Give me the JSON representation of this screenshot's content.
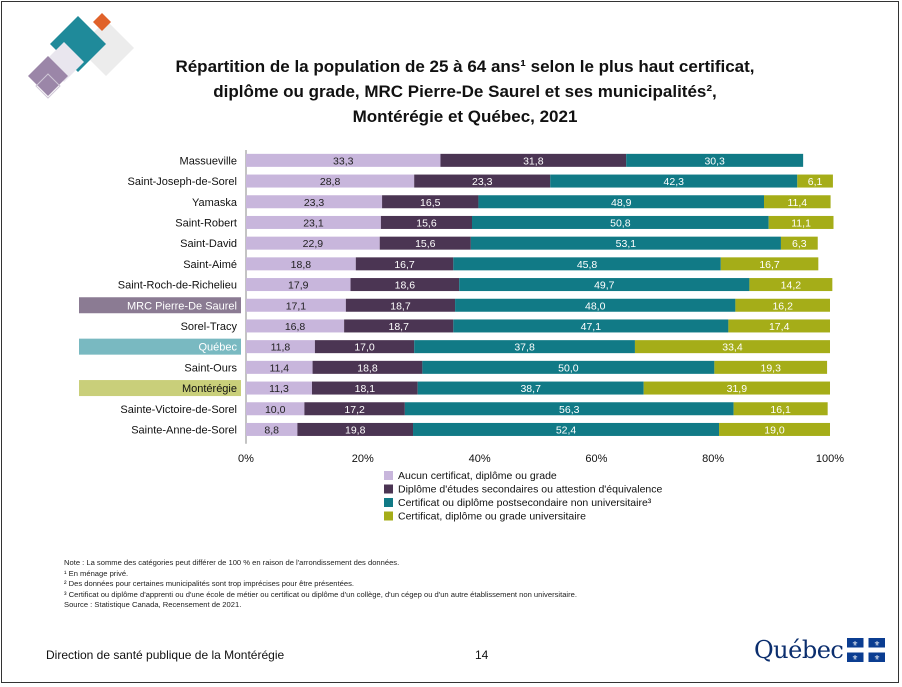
{
  "title": "Répartition de la population de 25 à 64 ans¹ selon le plus haut certificat,\ndiplôme ou grade, MRC Pierre-De Saurel et ses municipalités², \nMontérégie et Québec, 2021",
  "colors": {
    "highlight_mrc": "#8b7b93",
    "highlight_quebec": "#79b9c1",
    "highlight_monteregie": "#c9cf7a",
    "deco_teal": "#1f8a9a",
    "deco_orange": "#e0622a",
    "deco_purple": "#9b86a8",
    "deco_gray": "#e3e3e3"
  },
  "chart_data": {
    "type": "bar",
    "orientation": "horizontal",
    "stacked": true,
    "normalized": true,
    "categories": [
      "Massueville",
      "Saint-Joseph-de-Sorel",
      "Yamaska",
      "Saint-Robert",
      "Saint-David",
      "Saint-Aimé",
      "Saint-Roch-de-Richelieu",
      "MRC Pierre-De Saurel",
      "Sorel-Tracy",
      "Québec",
      "Saint-Ours",
      "Montérégie",
      "Sainte-Victoire-de-Sorel",
      "Sainte-Anne-de-Sorel"
    ],
    "highlighted": {
      "MRC Pierre-De Saurel": "highlight_mrc",
      "Québec": "highlight_quebec",
      "Montérégie": "highlight_monteregie"
    },
    "series": [
      {
        "name": "Aucun certificat, diplôme ou grade",
        "color": "#c8b6dc",
        "values": [
          33.3,
          28.8,
          23.3,
          23.1,
          22.9,
          18.8,
          17.9,
          17.1,
          16.8,
          11.8,
          11.4,
          11.3,
          10.0,
          8.8
        ],
        "labels": [
          "33,3",
          "28,8",
          "23,3",
          "23,1",
          "22,9",
          "18,8",
          "17,9",
          "17,1",
          "16,8",
          "11,8",
          "11,4",
          "11,3",
          "10,0",
          "8,8"
        ]
      },
      {
        "name": "Diplôme d'études secondaires ou attestion d'équivalence",
        "color": "#4b3553",
        "values": [
          31.8,
          23.3,
          16.5,
          15.6,
          15.6,
          16.7,
          18.6,
          18.7,
          18.7,
          17.0,
          18.8,
          18.1,
          17.2,
          19.8
        ],
        "labels": [
          "31,8",
          "23,3",
          "16,5",
          "15,6",
          "15,6",
          "16,7",
          "18,6",
          "18,7",
          "18,7",
          "17,0",
          "18,8",
          "18,1",
          "17,2",
          "19,8"
        ]
      },
      {
        "name": "Certificat ou diplôme postsecondaire non universitaire³",
        "color": "#117a86",
        "values": [
          30.3,
          42.3,
          48.9,
          50.8,
          53.1,
          45.8,
          49.7,
          48.0,
          47.1,
          37.8,
          50.0,
          38.7,
          56.3,
          52.4
        ],
        "labels": [
          "30,3",
          "42,3",
          "48,9",
          "50,8",
          "53,1",
          "45,8",
          "49,7",
          "48,0",
          "47,1",
          "37,8",
          "50,0",
          "38,7",
          "56,3",
          "52,4"
        ]
      },
      {
        "name": "Certificat, diplôme ou grade universitaire",
        "color": "#a5ad18",
        "values": [
          null,
          6.1,
          11.4,
          11.1,
          6.3,
          16.7,
          14.2,
          16.2,
          17.4,
          33.4,
          19.3,
          31.9,
          16.1,
          19.0
        ],
        "labels": [
          "",
          "6,1",
          "11,4",
          "11,1",
          "6,3",
          "16,7",
          "14,2",
          "16,2",
          "17,4",
          "33,4",
          "19,3",
          "31,9",
          "16,1",
          "19,0"
        ]
      }
    ],
    "xlim": [
      0,
      100
    ],
    "xticks": [
      "0%",
      "20%",
      "40%",
      "60%",
      "80%",
      "100%"
    ],
    "legend_position": "bottom"
  },
  "notes": [
    "Note : La somme des catégories peut différer de 100 % en raison de l'arrondissement des données.",
    "¹ En ménage privé.",
    "² Des données pour certaines municipalités sont trop imprécises pour être présentées.",
    "³ Certificat ou diplôme d'apprenti ou d'une école de métier ou certificat ou diplôme d'un collège, d'un cégep ou d'un autre établissement non universitaire.",
    "Source : Statistique Canada, Recensement de 2021."
  ],
  "footer": {
    "organization": "Direction de santé publique de la Montérégie",
    "page_number": "14",
    "logo_text": "Québec"
  }
}
